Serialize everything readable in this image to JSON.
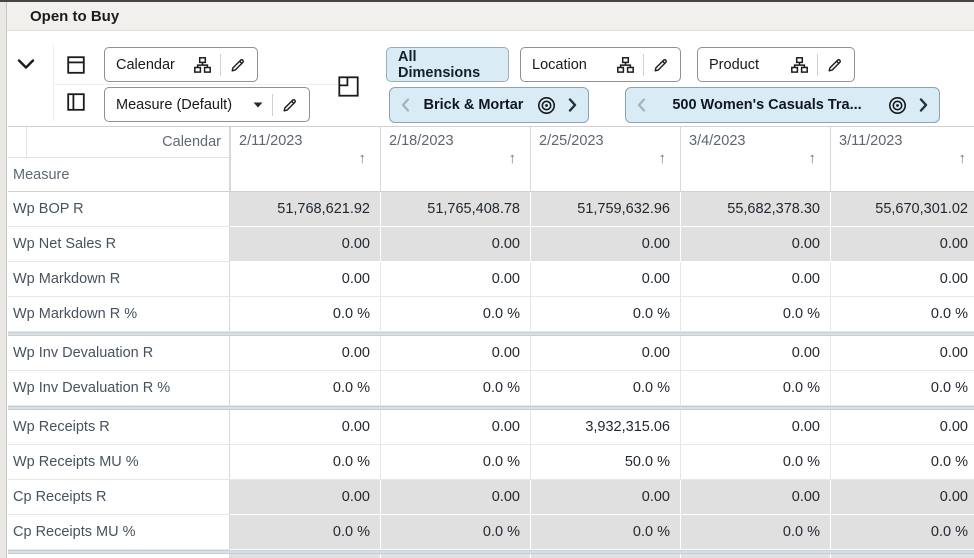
{
  "window": {
    "title": "Open to Buy"
  },
  "toolbar": {
    "calendar_button": {
      "label": "Calendar"
    },
    "measure_button": {
      "label": "Measure (Default)"
    },
    "all_dimensions_button": {
      "label": "All Dimensions"
    },
    "location_button": {
      "label": "Location"
    },
    "product_button": {
      "label": "Product"
    },
    "location_tile": {
      "label": "Brick & Mortar"
    },
    "product_tile": {
      "label": "500 Women's Casuals Tra..."
    }
  },
  "colors": {
    "accent_blue": "#d9ecf5",
    "readonly_cell": "#e0e0e0",
    "title_bar": "#f2f0ed"
  },
  "grid": {
    "column_axis_label": "Calendar",
    "row_axis_label": "Measure",
    "sort_icon": "↑",
    "columns": [
      "2/11/2023",
      "2/18/2023",
      "2/25/2023",
      "3/4/2023",
      "3/11/2023"
    ],
    "rows": [
      {
        "label": "Wp BOP R",
        "readonly": true,
        "group_end": false,
        "values": [
          "51,768,621.92",
          "51,765,408.78",
          "51,759,632.96",
          "55,682,378.30",
          "55,670,301.02"
        ]
      },
      {
        "label": "Wp Net Sales R",
        "readonly": true,
        "group_end": false,
        "values": [
          "0.00",
          "0.00",
          "0.00",
          "0.00",
          "0.00"
        ]
      },
      {
        "label": "Wp Markdown R",
        "readonly": false,
        "group_end": false,
        "values": [
          "0.00",
          "0.00",
          "0.00",
          "0.00",
          "0.00"
        ]
      },
      {
        "label": "Wp Markdown R %",
        "readonly": false,
        "group_end": true,
        "values": [
          "0.0 %",
          "0.0 %",
          "0.0 %",
          "0.0 %",
          "0.0 %"
        ]
      },
      {
        "label": "Wp Inv Devaluation R",
        "readonly": false,
        "group_end": false,
        "values": [
          "0.00",
          "0.00",
          "0.00",
          "0.00",
          "0.00"
        ]
      },
      {
        "label": "Wp Inv Devaluation R %",
        "readonly": false,
        "group_end": true,
        "values": [
          "0.0 %",
          "0.0 %",
          "0.0 %",
          "0.0 %",
          "0.0 %"
        ]
      },
      {
        "label": "Wp Receipts R",
        "readonly": false,
        "group_end": false,
        "values": [
          "0.00",
          "0.00",
          "3,932,315.06",
          "0.00",
          "0.00"
        ]
      },
      {
        "label": "Wp Receipts MU %",
        "readonly": false,
        "group_end": false,
        "values": [
          "0.0 %",
          "0.0 %",
          "50.0 %",
          "0.0 %",
          "0.0 %"
        ]
      },
      {
        "label": "Cp Receipts R",
        "readonly": true,
        "group_end": false,
        "values": [
          "0.00",
          "0.00",
          "0.00",
          "0.00",
          "0.00"
        ]
      },
      {
        "label": "Cp Receipts MU %",
        "readonly": true,
        "group_end": true,
        "values": [
          "0.0 %",
          "0.0 %",
          "0.0 %",
          "0.0 %",
          "0.0 %"
        ]
      }
    ],
    "partial_row_visible": true
  }
}
